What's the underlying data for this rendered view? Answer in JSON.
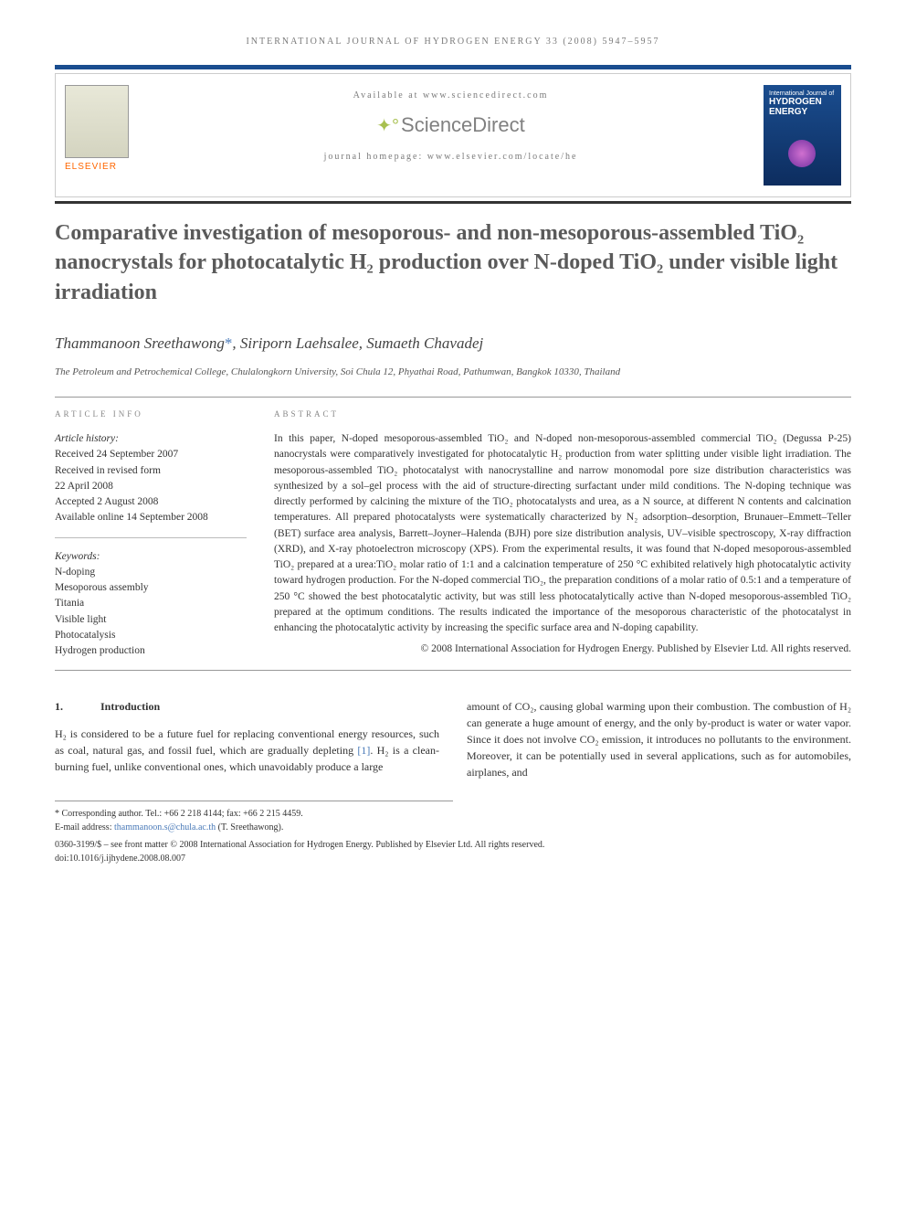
{
  "journal_header": "INTERNATIONAL JOURNAL OF HYDROGEN ENERGY 33 (2008) 5947–5957",
  "header": {
    "available": "Available at www.sciencedirect.com",
    "brand": "ScienceDirect",
    "homepage": "journal homepage: www.elsevier.com/locate/he",
    "publisher": "ELSEVIER",
    "cover_title": "HYDROGEN ENERGY"
  },
  "title": "Comparative investigation of mesoporous- and non-mesoporous-assembled TiO₂ nanocrystals for photocatalytic H₂ production over N-doped TiO₂ under visible light irradiation",
  "authors": "Thammanoon Sreethawong*, Siriporn Laehsalee, Sumaeth Chavadej",
  "affiliation": "The Petroleum and Petrochemical College, Chulalongkorn University, Soi Chula 12, Phyathai Road, Pathumwan, Bangkok 10330, Thailand",
  "article_info": {
    "heading": "ARTICLE INFO",
    "history_label": "Article history:",
    "received": "Received 24 September 2007",
    "revised1": "Received in revised form",
    "revised2": "22 April 2008",
    "accepted": "Accepted 2 August 2008",
    "online": "Available online 14 September 2008",
    "keywords_label": "Keywords:",
    "kw1": "N-doping",
    "kw2": "Mesoporous assembly",
    "kw3": "Titania",
    "kw4": "Visible light",
    "kw5": "Photocatalysis",
    "kw6": "Hydrogen production"
  },
  "abstract": {
    "heading": "ABSTRACT",
    "text": "In this paper, N-doped mesoporous-assembled TiO₂ and N-doped non-mesoporous-assembled commercial TiO₂ (Degussa P-25) nanocrystals were comparatively investigated for photocatalytic H₂ production from water splitting under visible light irradiation. The mesoporous-assembled TiO₂ photocatalyst with nanocrystalline and narrow monomodal pore size distribution characteristics was synthesized by a sol–gel process with the aid of structure-directing surfactant under mild conditions. The N-doping technique was directly performed by calcining the mixture of the TiO₂ photocatalysts and urea, as a N source, at different N contents and calcination temperatures. All prepared photocatalysts were systematically characterized by N₂ adsorption–desorption, Brunauer–Emmett–Teller (BET) surface area analysis, Barrett–Joyner–Halenda (BJH) pore size distribution analysis, UV–visible spectroscopy, X-ray diffraction (XRD), and X-ray photoelectron microscopy (XPS). From the experimental results, it was found that N-doped mesoporous-assembled TiO₂ prepared at a urea:TiO₂ molar ratio of 1:1 and a calcination temperature of 250 °C exhibited relatively high photocatalytic activity toward hydrogen production. For the N-doped commercial TiO₂, the preparation conditions of a molar ratio of 0.5:1 and a temperature of 250 °C showed the best photocatalytic activity, but was still less photocatalytically active than N-doped mesoporous-assembled TiO₂ prepared at the optimum conditions. The results indicated the importance of the mesoporous characteristic of the photocatalyst in enhancing the photocatalytic activity by increasing the specific surface area and N-doping capability.",
    "copyright": "© 2008 International Association for Hydrogen Energy. Published by Elsevier Ltd. All rights reserved."
  },
  "introduction": {
    "num": "1.",
    "label": "Introduction",
    "col1_a": "H₂ is considered to be a future fuel for replacing conventional energy resources, such as coal, natural gas, and fossil fuel, which are gradually depleting ",
    "col1_cite": "[1]",
    "col1_b": ". H₂ is a clean-burning fuel, unlike conventional ones, which unavoidably produce a large",
    "col2": "amount of CO₂, causing global warming upon their combustion. The combustion of H₂ can generate a huge amount of energy, and the only by-product is water or water vapor. Since it does not involve CO₂ emission, it introduces no pollutants to the environment. Moreover, it can be potentially used in several applications, such as for automobiles, airplanes, and"
  },
  "footnotes": {
    "corresp": "* Corresponding author. Tel.: +66 2 218 4144; fax: +66 2 215 4459.",
    "email_label": "E-mail address: ",
    "email": "thammanoon.s@chula.ac.th",
    "email_who": " (T. Sreethawong).",
    "front_matter": "0360-3199/$ – see front matter © 2008 International Association for Hydrogen Energy. Published by Elsevier Ltd. All rights reserved.",
    "doi": "doi:10.1016/j.ijhydene.2008.08.007"
  }
}
